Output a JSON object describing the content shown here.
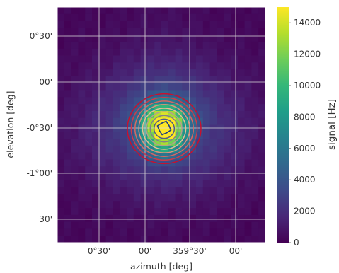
{
  "chart_data": {
    "type": "heatmap",
    "xlabel": "azimuth [deg]",
    "ylabel": "elevation [deg]",
    "x_tick_labels": [
      "0°30'",
      "00'",
      "359°30'",
      "00'"
    ],
    "y_tick_labels": [
      "0°30'",
      "00'",
      "-0°30'",
      "-1°00'",
      "30'"
    ],
    "colorbar": {
      "label": "signal [Hz]",
      "range": [
        0,
        15000
      ],
      "ticks": [
        0,
        2000,
        4000,
        6000,
        8000,
        10000,
        12000,
        14000
      ],
      "colormap": "viridis"
    },
    "peak": {
      "azimuth_deg": 359.75,
      "elevation_deg": -0.5,
      "value": 14800
    },
    "contour_levels": [
      1500,
      3000,
      4500,
      6000,
      7500,
      9000,
      10500,
      12000,
      13500
    ],
    "grid": true,
    "colors": {
      "contour_low": "#c8102e",
      "contour_high": "#1f3f7f",
      "grid": "#d8d8d8"
    }
  }
}
